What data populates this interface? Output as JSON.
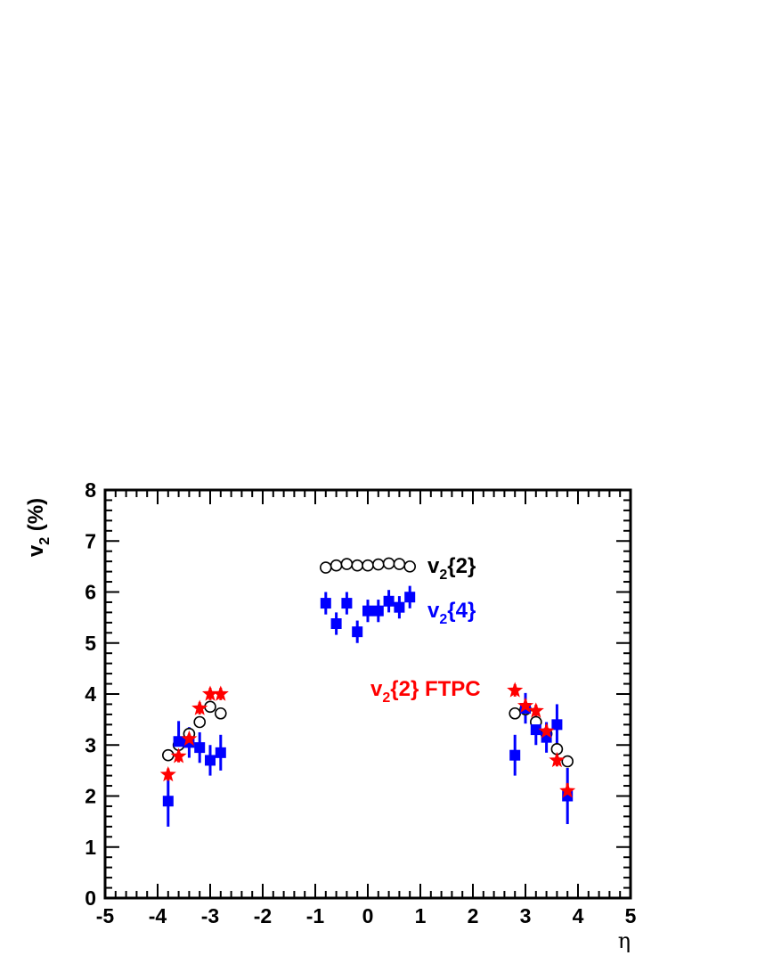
{
  "chart_data": {
    "type": "scatter",
    "xlabel": "η",
    "ylabel_main": "v",
    "ylabel_sub": "2",
    "ylabel_rest": " (%)",
    "xlim": [
      -5,
      5
    ],
    "ylim": [
      0,
      8
    ],
    "x_ticks": [
      "-5",
      "-4",
      "-3",
      "-2",
      "-1",
      "0",
      "1",
      "2",
      "3",
      "4",
      "5"
    ],
    "y_ticks": [
      "0",
      "1",
      "2",
      "3",
      "4",
      "5",
      "6",
      "7",
      "8"
    ],
    "series": [
      {
        "name_main": "v",
        "name_sub": "2",
        "name_rest": "{2}",
        "color": "#000000",
        "marker": "open-circle",
        "points": [
          {
            "x": -3.8,
            "y": 2.8,
            "err": 0.05
          },
          {
            "x": -3.6,
            "y": 3.0,
            "err": 0.05
          },
          {
            "x": -3.4,
            "y": 3.22,
            "err": 0.05
          },
          {
            "x": -3.2,
            "y": 3.45,
            "err": 0.05
          },
          {
            "x": -3.0,
            "y": 3.75,
            "err": 0.05
          },
          {
            "x": -2.8,
            "y": 3.62,
            "err": 0.05
          },
          {
            "x": -0.8,
            "y": 6.48,
            "err": 0.03
          },
          {
            "x": -0.6,
            "y": 6.52,
            "err": 0.03
          },
          {
            "x": -0.4,
            "y": 6.55,
            "err": 0.03
          },
          {
            "x": -0.2,
            "y": 6.52,
            "err": 0.03
          },
          {
            "x": 0.0,
            "y": 6.52,
            "err": 0.03
          },
          {
            "x": 0.2,
            "y": 6.54,
            "err": 0.03
          },
          {
            "x": 0.4,
            "y": 6.56,
            "err": 0.03
          },
          {
            "x": 0.6,
            "y": 6.55,
            "err": 0.03
          },
          {
            "x": 0.8,
            "y": 6.5,
            "err": 0.03
          },
          {
            "x": 2.8,
            "y": 3.62,
            "err": 0.05
          },
          {
            "x": 3.0,
            "y": 3.7,
            "err": 0.05
          },
          {
            "x": 3.2,
            "y": 3.45,
            "err": 0.05
          },
          {
            "x": 3.4,
            "y": 3.22,
            "err": 0.05
          },
          {
            "x": 3.6,
            "y": 2.92,
            "err": 0.05
          },
          {
            "x": 3.8,
            "y": 2.68,
            "err": 0.05
          }
        ]
      },
      {
        "name_main": "v",
        "name_sub": "2",
        "name_rest": "{4}",
        "color": "#0000ff",
        "marker": "filled-square",
        "points": [
          {
            "x": -3.8,
            "y": 1.9,
            "err": 0.5
          },
          {
            "x": -3.6,
            "y": 3.07,
            "err": 0.4
          },
          {
            "x": -3.4,
            "y": 3.05,
            "err": 0.3
          },
          {
            "x": -3.2,
            "y": 2.95,
            "err": 0.3
          },
          {
            "x": -3.0,
            "y": 2.7,
            "err": 0.3
          },
          {
            "x": -2.8,
            "y": 2.85,
            "err": 0.35
          },
          {
            "x": -0.8,
            "y": 5.78,
            "err": 0.22
          },
          {
            "x": -0.6,
            "y": 5.38,
            "err": 0.22
          },
          {
            "x": -0.4,
            "y": 5.78,
            "err": 0.22
          },
          {
            "x": -0.2,
            "y": 5.22,
            "err": 0.22
          },
          {
            "x": 0.0,
            "y": 5.63,
            "err": 0.22
          },
          {
            "x": 0.2,
            "y": 5.63,
            "err": 0.22
          },
          {
            "x": 0.4,
            "y": 5.82,
            "err": 0.22
          },
          {
            "x": 0.6,
            "y": 5.7,
            "err": 0.22
          },
          {
            "x": 0.8,
            "y": 5.9,
            "err": 0.22
          },
          {
            "x": 2.8,
            "y": 2.8,
            "err": 0.4
          },
          {
            "x": 3.0,
            "y": 3.72,
            "err": 0.3
          },
          {
            "x": 3.2,
            "y": 3.3,
            "err": 0.3
          },
          {
            "x": 3.4,
            "y": 3.15,
            "err": 0.3
          },
          {
            "x": 3.6,
            "y": 3.4,
            "err": 0.4
          },
          {
            "x": 3.8,
            "y": 2.0,
            "err": 0.55
          }
        ]
      },
      {
        "name_main": "v",
        "name_sub": "2",
        "name_rest": "{2} FTPC",
        "color": "#ff0000",
        "marker": "star",
        "points": [
          {
            "x": -3.8,
            "y": 2.42,
            "err": 0.12
          },
          {
            "x": -3.6,
            "y": 2.78,
            "err": 0.12
          },
          {
            "x": -3.4,
            "y": 3.12,
            "err": 0.12
          },
          {
            "x": -3.2,
            "y": 3.72,
            "err": 0.12
          },
          {
            "x": -3.0,
            "y": 4.0,
            "err": 0.12
          },
          {
            "x": -2.8,
            "y": 4.0,
            "err": 0.12
          },
          {
            "x": 2.8,
            "y": 4.07,
            "err": 0.12
          },
          {
            "x": 3.0,
            "y": 3.77,
            "err": 0.12
          },
          {
            "x": 3.2,
            "y": 3.67,
            "err": 0.12
          },
          {
            "x": 3.4,
            "y": 3.27,
            "err": 0.12
          },
          {
            "x": 3.6,
            "y": 2.7,
            "err": 0.12
          },
          {
            "x": 3.8,
            "y": 2.1,
            "err": 0.15
          }
        ]
      }
    ],
    "grid": false
  }
}
